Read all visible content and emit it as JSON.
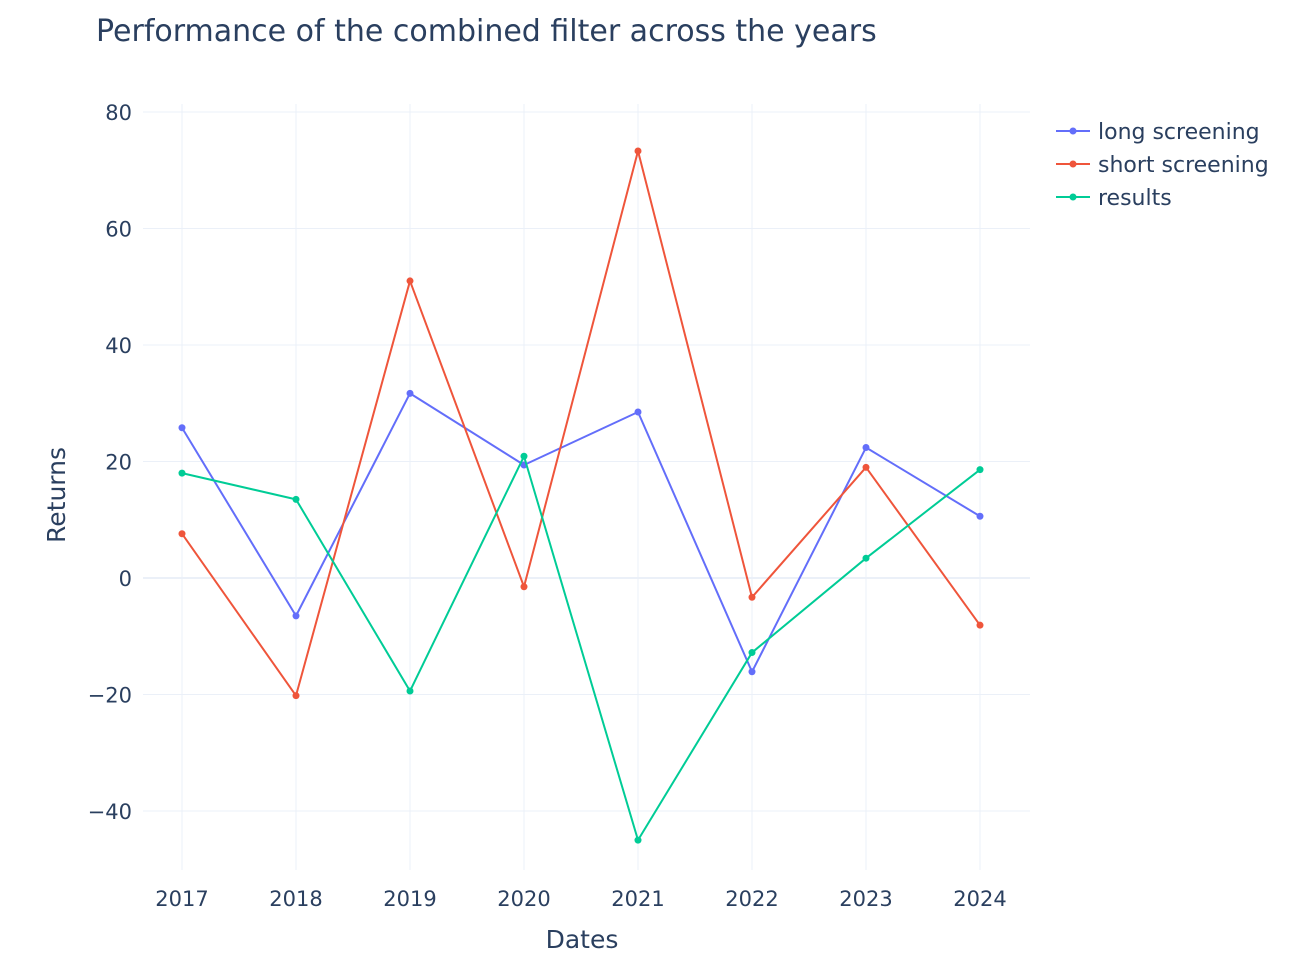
{
  "chart_data": {
    "type": "line",
    "title": "Performance of the combined filter across the years",
    "xlabel": "Dates",
    "ylabel": "Returns",
    "x": [
      "2017",
      "2018",
      "2019",
      "2020",
      "2021",
      "2022",
      "2023",
      "2024"
    ],
    "ylim": [
      -52,
      80
    ],
    "yticks": [
      80,
      60,
      40,
      20,
      0,
      -20,
      -40
    ],
    "ytick_labels": [
      "80",
      "60",
      "40",
      "20",
      "0",
      "−20",
      "−40"
    ],
    "grid": true,
    "legend_position": "top-right",
    "series": [
      {
        "name": "long screening",
        "color": "#636efa",
        "values": [
          25.8,
          -6.5,
          31.7,
          19.4,
          28.5,
          -16.1,
          22.4,
          10.6
        ]
      },
      {
        "name": "short screening",
        "color": "#ef553b",
        "values": [
          7.6,
          -20.2,
          51.0,
          -1.5,
          73.3,
          -3.3,
          19.0,
          -8.1
        ]
      },
      {
        "name": "results",
        "color": "#00cc96",
        "values": [
          18.0,
          13.5,
          -19.4,
          20.9,
          -45.0,
          -12.8,
          3.4,
          18.6
        ]
      }
    ]
  }
}
